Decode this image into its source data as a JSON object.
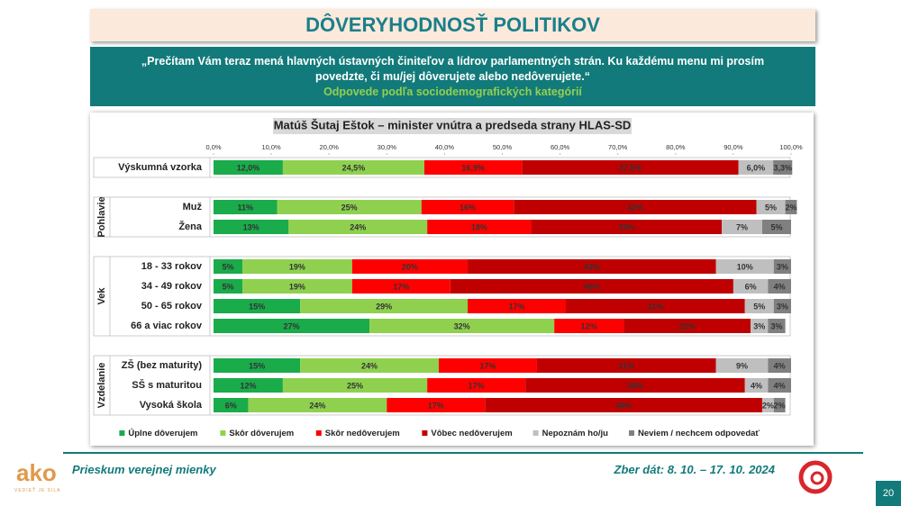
{
  "slide": {
    "title": "DÔVERYHODNOSŤ POLITIKOV",
    "question": "„Prečítam Vám teraz mená hlavných ústavných činiteľov a lídrov parlamentných strán. Ku každému menu mi prosím povedzte, či mu/jej dôverujete alebo nedôverujete.“",
    "subtitle": "Odpovede podľa sociodemografických kategórií",
    "footer_left": "Prieskum verejnej mienky",
    "footer_right": "Zber dát: 8. 10. – 17. 10. 2024",
    "page_number": "20",
    "logo_text": "ako",
    "logo_tagline": "VEDIEŤ JE SILA"
  },
  "chart_data": {
    "type": "stacked-bar-horizontal",
    "title": "Matúš Šutaj Eštok – minister vnútra a predseda strany HLAS-SD",
    "categories": [
      "Výskumná vzorka",
      "Muž",
      "Žena",
      "18 - 33 rokov",
      "34 - 49 rokov",
      "50 - 65 rokov",
      "66 a viac rokov",
      "ZŠ (bez maturity)",
      "SŠ s maturitou",
      "Vysoká škola"
    ],
    "category_groups": [
      null,
      "Pohlavie",
      "Pohlavie",
      "Vek",
      "Vek",
      "Vek",
      "Vek",
      "Vzdelanie",
      "Vzdelanie",
      "Vzdelanie"
    ],
    "xlim": [
      0,
      100
    ],
    "xticks": [
      {
        "value": 0,
        "label": "0,0%"
      },
      {
        "value": 10,
        "label": "10,0%"
      },
      {
        "value": 20,
        "label": "20,0%"
      },
      {
        "value": 30,
        "label": "30,0%"
      },
      {
        "value": 40,
        "label": "40,0%"
      },
      {
        "value": 50,
        "label": "50,0%"
      },
      {
        "value": 60,
        "label": "60,0%"
      },
      {
        "value": 70,
        "label": "70,0%"
      },
      {
        "value": 80,
        "label": "80,0%"
      },
      {
        "value": 90,
        "label": "90,0%"
      },
      {
        "value": 100,
        "label": "100,0%"
      }
    ],
    "legend": "bottom",
    "series": [
      {
        "name": "Úplne dôverujem",
        "color": "#1aab4b",
        "values": [
          12.0,
          11,
          13,
          5,
          5,
          15,
          27,
          15,
          12,
          6
        ],
        "value_labels": [
          "12,0%",
          "11%",
          "13%",
          "5%",
          "5%",
          "15%",
          "27%",
          "15%",
          "12%",
          "6%"
        ]
      },
      {
        "name": "Skôr dôverujem",
        "color": "#8fd14f",
        "values": [
          24.5,
          25,
          24,
          19,
          19,
          29,
          32,
          24,
          25,
          24
        ],
        "value_labels": [
          "24,5%",
          "25%",
          "24%",
          "19%",
          "19%",
          "29%",
          "32%",
          "24%",
          "25%",
          "24%"
        ]
      },
      {
        "name": "Skôr nedôverujem",
        "color": "#ff0000",
        "values": [
          16.9,
          16,
          18,
          20,
          17,
          17,
          12,
          17,
          17,
          17
        ],
        "value_labels": [
          "16,9%",
          "16%",
          "18%",
          "20%",
          "17%",
          "17%",
          "12%",
          "17%",
          "17%",
          "17%"
        ]
      },
      {
        "name": "Vôbec nedôverujem",
        "color": "#c00000",
        "values": [
          37.5,
          42,
          33,
          43,
          49,
          31,
          22,
          31,
          38,
          48
        ],
        "value_labels": [
          "37,5%",
          "42%",
          "33%",
          "43%",
          "49%",
          "31%",
          "22%",
          "31%",
          "38%",
          "48%"
        ]
      },
      {
        "name": "Nepoznám ho/ju",
        "color": "#bfbfbf",
        "values": [
          6.0,
          5,
          7,
          10,
          6,
          5,
          3,
          9,
          4,
          2
        ],
        "value_labels": [
          "6,0%",
          "5%",
          "7%",
          "10%",
          "6%",
          "5%",
          "3%",
          "9%",
          "4%",
          "2%"
        ]
      },
      {
        "name": "Neviem / nechcem odpovedať",
        "color": "#808080",
        "values": [
          3.3,
          2,
          5,
          3,
          4,
          3,
          3,
          4,
          4,
          2
        ],
        "value_labels": [
          "3,3%",
          "2%",
          "5%",
          "3%",
          "4%",
          "3%",
          "3%",
          "4%",
          "4%",
          "2%"
        ]
      }
    ]
  }
}
